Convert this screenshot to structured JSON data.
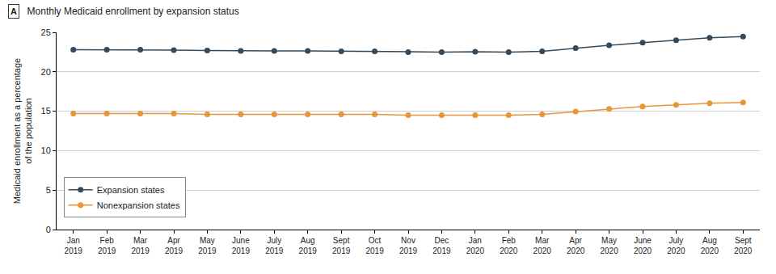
{
  "chart_data": {
    "type": "line",
    "title": "Monthly Medicaid enrollment by expansion status",
    "annotations": [
      "A"
    ],
    "ylabel": "Medicaid enrollment as a percentage of the population",
    "categories": [
      "Jan 2019",
      "Feb 2019",
      "Mar 2019",
      "Apr 2019",
      "May 2019",
      "June 2019",
      "July 2019",
      "Aug 2019",
      "Sept 2019",
      "Oct 2019",
      "Nov 2019",
      "Dec 2019",
      "Jan 2020",
      "Feb 2020",
      "Mar 2020",
      "Apr 2020",
      "May 2020",
      "June 2020",
      "July 2020",
      "Aug 2020",
      "Sept 2020"
    ],
    "series": [
      {
        "name": "Expansion states",
        "color": "#34495a",
        "marker": "circle",
        "values": [
          22.8,
          22.8,
          22.8,
          22.75,
          22.7,
          22.65,
          22.65,
          22.65,
          22.6,
          22.6,
          22.5,
          22.5,
          22.55,
          22.5,
          22.6,
          23.0,
          23.35,
          23.7,
          24.0,
          24.3,
          24.45
        ]
      },
      {
        "name": "Nonexpansion states",
        "color": "#e8963a",
        "marker": "circle",
        "values": [
          14.7,
          14.7,
          14.7,
          14.7,
          14.6,
          14.6,
          14.6,
          14.6,
          14.6,
          14.6,
          14.5,
          14.5,
          14.5,
          14.5,
          14.6,
          14.95,
          15.3,
          15.6,
          15.8,
          16.0,
          16.1
        ]
      }
    ],
    "ylim": [
      0,
      25
    ],
    "yticks": [
      0,
      5,
      10,
      15,
      20,
      25
    ],
    "grid": true,
    "legend": "lower left"
  }
}
